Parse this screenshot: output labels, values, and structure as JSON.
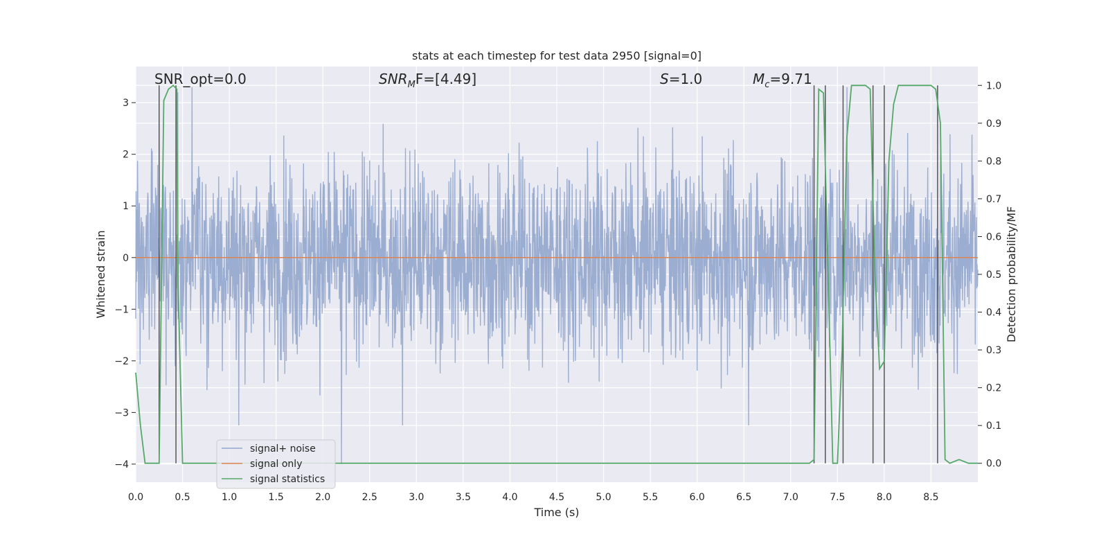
{
  "chart_data": {
    "type": "line",
    "title": "stats at each timestep for test data 2950 [signal=0]",
    "xlabel": "Time (s)",
    "ylabel": "Whitened strain",
    "y2label": "Detection probability/MF",
    "xlim": [
      0,
      9
    ],
    "ylim": [
      -4.35,
      3.7
    ],
    "y2lim": [
      -0.05,
      1.05
    ],
    "x_ticks": [
      "0.0",
      "0.5",
      "1.0",
      "1.5",
      "2.0",
      "2.5",
      "3.0",
      "3.5",
      "4.0",
      "4.5",
      "5.0",
      "5.5",
      "6.0",
      "6.5",
      "7.0",
      "7.5",
      "8.0",
      "8.5"
    ],
    "y_ticks": [
      "3",
      "2",
      "1",
      "0",
      "−1",
      "−2",
      "−3",
      "−4"
    ],
    "y2_ticks": [
      "1.0",
      "0.9",
      "0.8",
      "0.7",
      "0.6",
      "0.5",
      "0.4",
      "0.3",
      "0.2",
      "0.1",
      "0.0"
    ],
    "grid": true,
    "legend_position": "lower-left",
    "annotations": {
      "snr_opt": "SNR_opt=0.0",
      "snr_mf_main": "SNR",
      "snr_mf_sub": "M",
      "snr_mf_rest": "F=[4.49]",
      "s_main": "S",
      "s_rest": "=1.0",
      "mc_main": "M",
      "mc_sub": "c",
      "mc_rest": "=9.71"
    },
    "vertical_lines_x": [
      0.25,
      0.43,
      7.25,
      7.37,
      7.56,
      7.88,
      8.0,
      8.57
    ],
    "series": [
      {
        "name": "signal+ noise",
        "color": "#92a6cc",
        "description_points": {
          "sample_rate_per_s": 256,
          "typical_abs": 1.4,
          "extremes": [
            {
              "x": 0.45,
              "y": 3.2
            },
            {
              "x": 0.6,
              "y": 3.3
            },
            {
              "x": 1.1,
              "y": -3.25
            },
            {
              "x": 2.2,
              "y": -4.0
            },
            {
              "x": 2.85,
              "y": -3.25
            },
            {
              "x": 6.55,
              "y": -3.25
            },
            {
              "x": 7.6,
              "y": 3.3
            },
            {
              "x": 8.6,
              "y": 2.0
            }
          ]
        }
      },
      {
        "name": "signal only",
        "color": "#dd8452",
        "x": [
          0,
          9
        ],
        "y": [
          0,
          0
        ]
      },
      {
        "name": "signal statistics",
        "color": "#55a868",
        "x": [
          0.0,
          0.05,
          0.1,
          0.25,
          0.3,
          0.35,
          0.4,
          0.44,
          0.45,
          0.5,
          1.0,
          2.0,
          3.0,
          4.0,
          5.0,
          6.0,
          7.0,
          7.2,
          7.25,
          7.3,
          7.35,
          7.4,
          7.45,
          7.5,
          7.55,
          7.6,
          7.65,
          7.7,
          7.8,
          7.85,
          7.9,
          7.95,
          8.0,
          8.05,
          8.1,
          8.15,
          8.2,
          8.5,
          8.55,
          8.6,
          8.65,
          8.7,
          8.8,
          8.9,
          9.0
        ],
        "y": [
          0.24,
          0.1,
          0.0,
          0.0,
          0.96,
          0.99,
          1.0,
          0.99,
          0.5,
          0.0,
          0.0,
          0.0,
          0.0,
          0.0,
          0.0,
          0.0,
          0.0,
          0.0,
          0.01,
          0.99,
          0.98,
          0.5,
          0.0,
          0.0,
          0.3,
          0.86,
          1.0,
          1.0,
          1.0,
          0.99,
          0.5,
          0.25,
          0.27,
          0.8,
          0.95,
          1.0,
          1.0,
          1.0,
          0.99,
          0.9,
          0.01,
          0.0,
          0.01,
          0.0,
          0.0
        ]
      }
    ]
  }
}
